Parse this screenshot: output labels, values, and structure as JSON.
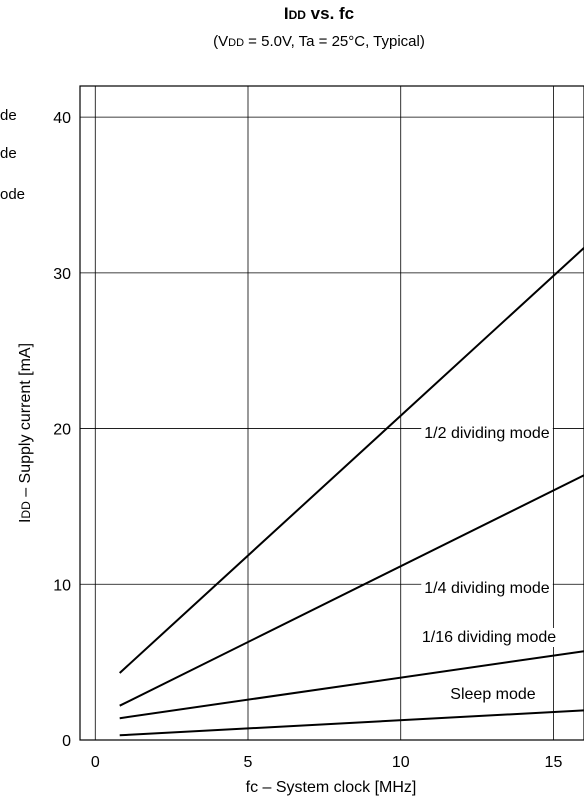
{
  "chart_data": {
    "type": "line",
    "title": "IDD vs. fc",
    "subtitle": "(VDD = 5.0V, Ta = 25°C, Typical)",
    "xlabel": "fc – System clock [MHz]",
    "ylabel": "IDD – Supply current [mA]",
    "xlim": [
      -0.5,
      16
    ],
    "ylim": [
      0,
      42
    ],
    "x_ticks": [
      "0",
      "5",
      "10",
      "15"
    ],
    "y_ticks": [
      "0",
      "10",
      "20",
      "30",
      "40"
    ],
    "grid": true,
    "series": [
      {
        "name": "1/2 dividing mode",
        "x": [
          0.8,
          16
        ],
        "y": [
          4.3,
          31.6
        ]
      },
      {
        "name": "1/4 dividing mode",
        "x": [
          0.8,
          16
        ],
        "y": [
          2.2,
          17.0
        ]
      },
      {
        "name": "1/16 dividing mode",
        "x": [
          0.8,
          16
        ],
        "y": [
          1.4,
          5.7
        ]
      },
      {
        "name": "Sleep mode",
        "x": [
          0.8,
          16
        ],
        "y": [
          0.3,
          1.9
        ]
      }
    ],
    "side_fragments": [
      "de",
      "de",
      "ode"
    ]
  }
}
